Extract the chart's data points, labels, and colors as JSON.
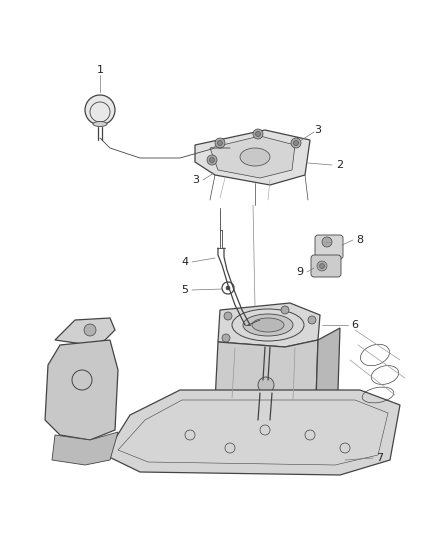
{
  "background_color": "#ffffff",
  "line_color": "#444444",
  "label_color": "#222222",
  "figure_width": 4.38,
  "figure_height": 5.33,
  "dpi": 100
}
